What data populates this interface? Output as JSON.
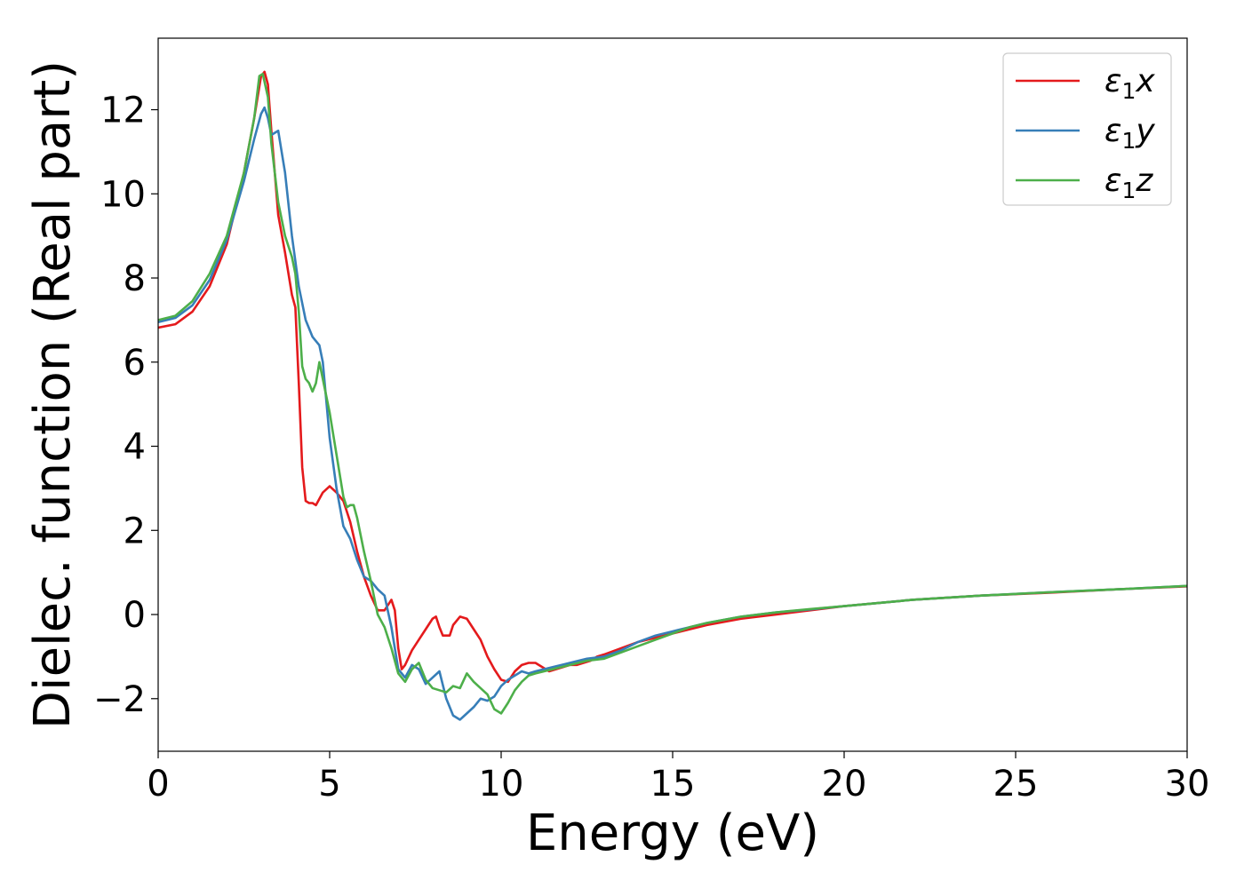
{
  "chart_data": {
    "type": "line",
    "xlabel": "Energy (eV)",
    "ylabel": "Dielec. function (Real part)",
    "xlim": [
      0,
      30
    ],
    "ylim": [
      -3.25,
      13.7
    ],
    "xticks": [
      0,
      5,
      10,
      15,
      20,
      25,
      30
    ],
    "yticks": [
      -2,
      0,
      2,
      4,
      6,
      8,
      10,
      12
    ],
    "xtick_labels": [
      "0",
      "5",
      "10",
      "15",
      "20",
      "25",
      "30"
    ],
    "ytick_labels": [
      "−2",
      "0",
      "2",
      "4",
      "6",
      "8",
      "10",
      "12"
    ],
    "grid": false,
    "legend_position": "top-right",
    "series": [
      {
        "name": "ε₁x",
        "legend_main": "ε",
        "legend_sub": "1",
        "legend_tail": "x",
        "color": "#e41a1c",
        "x": [
          0,
          0.5,
          1.0,
          1.5,
          2.0,
          2.5,
          2.8,
          3.0,
          3.1,
          3.2,
          3.3,
          3.5,
          3.7,
          3.9,
          4.0,
          4.1,
          4.2,
          4.3,
          4.4,
          4.5,
          4.6,
          4.7,
          4.8,
          5.0,
          5.2,
          5.4,
          5.6,
          5.8,
          6.0,
          6.2,
          6.4,
          6.6,
          6.8,
          6.9,
          7.0,
          7.1,
          7.2,
          7.4,
          7.6,
          7.8,
          8.0,
          8.1,
          8.2,
          8.3,
          8.5,
          8.6,
          8.8,
          9.0,
          9.2,
          9.4,
          9.6,
          9.8,
          10.0,
          10.2,
          10.4,
          10.6,
          10.8,
          11.0,
          11.2,
          11.4,
          11.6,
          11.8,
          12.0,
          12.2,
          12.4,
          12.6,
          12.8,
          13.0,
          13.5,
          14.0,
          14.5,
          15.0,
          15.5,
          16.0,
          17.0,
          18.0,
          19.0,
          20.0,
          22.0,
          24.0,
          26.0,
          28.0,
          30.0
        ],
        "y": [
          6.82,
          6.9,
          7.2,
          7.8,
          8.8,
          10.5,
          11.8,
          12.8,
          12.9,
          12.6,
          11.5,
          9.5,
          8.6,
          7.6,
          7.3,
          5.5,
          3.5,
          2.7,
          2.65,
          2.65,
          2.6,
          2.75,
          2.9,
          3.05,
          2.9,
          2.7,
          2.2,
          1.5,
          0.9,
          0.45,
          0.1,
          0.1,
          0.35,
          0.1,
          -0.8,
          -1.3,
          -1.2,
          -0.85,
          -0.6,
          -0.35,
          -0.1,
          -0.05,
          -0.3,
          -0.5,
          -0.5,
          -0.25,
          -0.05,
          -0.1,
          -0.35,
          -0.6,
          -1.0,
          -1.3,
          -1.55,
          -1.6,
          -1.35,
          -1.2,
          -1.15,
          -1.15,
          -1.25,
          -1.35,
          -1.3,
          -1.25,
          -1.2,
          -1.2,
          -1.15,
          -1.1,
          -1.0,
          -0.95,
          -0.8,
          -0.65,
          -0.55,
          -0.45,
          -0.35,
          -0.25,
          -0.1,
          0.0,
          0.1,
          0.2,
          0.35,
          0.45,
          0.52,
          0.6,
          0.67
        ]
      },
      {
        "name": "ε₁y",
        "legend_main": "ε",
        "legend_sub": "1",
        "legend_tail": "y",
        "color": "#377eb8",
        "x": [
          0,
          0.5,
          1.0,
          1.5,
          2.0,
          2.5,
          2.8,
          3.0,
          3.1,
          3.2,
          3.3,
          3.5,
          3.7,
          3.9,
          4.1,
          4.3,
          4.5,
          4.7,
          4.8,
          5.0,
          5.2,
          5.4,
          5.6,
          5.8,
          6.0,
          6.2,
          6.4,
          6.6,
          6.8,
          7.0,
          7.2,
          7.4,
          7.6,
          7.8,
          8.0,
          8.2,
          8.4,
          8.6,
          8.8,
          9.0,
          9.2,
          9.4,
          9.6,
          9.8,
          10.0,
          10.2,
          10.4,
          10.6,
          10.8,
          11.0,
          11.5,
          12.0,
          12.5,
          13.0,
          13.5,
          14.0,
          14.5,
          15.0,
          15.5,
          16.0,
          17.0,
          18.0,
          19.0,
          20.0,
          22.0,
          24.0,
          26.0,
          28.0,
          30.0
        ],
        "y": [
          6.95,
          7.05,
          7.35,
          7.95,
          8.9,
          10.3,
          11.3,
          11.9,
          12.05,
          11.8,
          11.4,
          11.5,
          10.5,
          9.0,
          7.8,
          7.0,
          6.6,
          6.4,
          6.0,
          4.2,
          3.0,
          2.1,
          1.8,
          1.3,
          0.9,
          0.8,
          0.6,
          0.45,
          -0.3,
          -1.3,
          -1.5,
          -1.2,
          -1.3,
          -1.65,
          -1.5,
          -1.35,
          -2.0,
          -2.4,
          -2.5,
          -2.35,
          -2.2,
          -2.0,
          -2.05,
          -1.95,
          -1.7,
          -1.55,
          -1.45,
          -1.35,
          -1.4,
          -1.35,
          -1.25,
          -1.15,
          -1.05,
          -1.0,
          -0.85,
          -0.65,
          -0.5,
          -0.4,
          -0.3,
          -0.2,
          -0.05,
          0.05,
          0.12,
          0.2,
          0.35,
          0.45,
          0.53,
          0.6,
          0.68
        ]
      },
      {
        "name": "ε₁z",
        "legend_main": "ε",
        "legend_sub": "1",
        "legend_tail": "z",
        "color": "#4daf4a",
        "x": [
          0,
          0.5,
          1.0,
          1.5,
          2.0,
          2.5,
          2.8,
          2.95,
          3.05,
          3.2,
          3.3,
          3.5,
          3.7,
          3.9,
          4.0,
          4.1,
          4.2,
          4.3,
          4.4,
          4.5,
          4.6,
          4.7,
          4.8,
          4.9,
          5.0,
          5.2,
          5.4,
          5.5,
          5.6,
          5.7,
          5.8,
          6.0,
          6.2,
          6.4,
          6.6,
          6.8,
          7.0,
          7.2,
          7.4,
          7.6,
          7.8,
          8.0,
          8.2,
          8.4,
          8.6,
          8.8,
          9.0,
          9.2,
          9.4,
          9.6,
          9.8,
          10.0,
          10.2,
          10.4,
          10.6,
          10.8,
          11.0,
          11.5,
          12.0,
          12.5,
          13.0,
          13.5,
          14.0,
          14.5,
          15.0,
          15.5,
          16.0,
          17.0,
          18.0,
          19.0,
          20.0,
          22.0,
          24.0,
          26.0,
          28.0,
          30.0
        ],
        "y": [
          7.0,
          7.1,
          7.45,
          8.1,
          9.0,
          10.5,
          11.8,
          12.8,
          12.85,
          12.3,
          11.2,
          9.8,
          9.0,
          8.5,
          8.1,
          7.2,
          5.9,
          5.6,
          5.5,
          5.3,
          5.5,
          6.0,
          5.6,
          5.2,
          4.8,
          3.8,
          2.8,
          2.55,
          2.6,
          2.6,
          2.3,
          1.5,
          0.8,
          0.0,
          -0.3,
          -0.8,
          -1.4,
          -1.6,
          -1.3,
          -1.15,
          -1.55,
          -1.75,
          -1.8,
          -1.85,
          -1.7,
          -1.75,
          -1.4,
          -1.6,
          -1.75,
          -1.9,
          -2.25,
          -2.35,
          -2.1,
          -1.8,
          -1.6,
          -1.45,
          -1.4,
          -1.3,
          -1.2,
          -1.1,
          -1.05,
          -0.9,
          -0.75,
          -0.6,
          -0.45,
          -0.3,
          -0.2,
          -0.05,
          0.05,
          0.13,
          0.2,
          0.35,
          0.45,
          0.53,
          0.6,
          0.68
        ]
      }
    ]
  }
}
